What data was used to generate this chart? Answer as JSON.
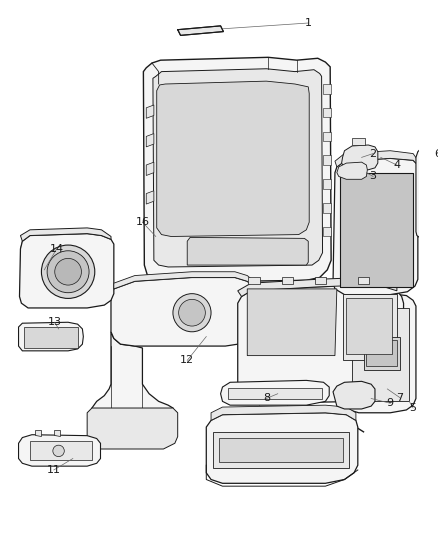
{
  "background_color": "#ffffff",
  "line_color": "#1a1a1a",
  "label_color": "#1a1a1a",
  "figsize": [
    4.38,
    5.33
  ],
  "dpi": 100,
  "fill_light": "#f5f5f5",
  "fill_mid": "#e8e8e8",
  "fill_dark": "#d8d8d8",
  "fill_darker": "#c5c5c5"
}
